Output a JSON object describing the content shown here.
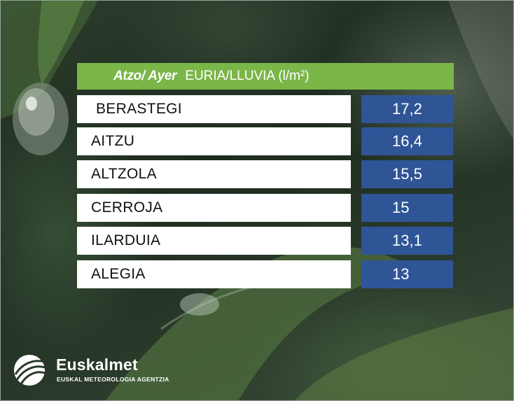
{
  "header": {
    "prefix": "Atzo/ Ayer",
    "title": "EURIA/LLUVIA (l/m²)"
  },
  "stations": [
    {
      "name": "BERASTEGI",
      "value": "17,2"
    },
    {
      "name": "AITZU",
      "value": "16,4"
    },
    {
      "name": "ALTZOLA",
      "value": "15,5"
    },
    {
      "name": "CERROJA",
      "value": "15"
    },
    {
      "name": "ILARDUIA",
      "value": "13,1"
    },
    {
      "name": "ALEGIA",
      "value": "13"
    }
  ],
  "logo": {
    "name": "Euskalmet",
    "subtitle": "EUSKAL METEOROLOGIA AGENTZIA",
    "icon": "euskalmet-logo-icon"
  },
  "colors": {
    "header": "#7ab648",
    "value_box": "#2f5597",
    "name_box": "#ffffff"
  }
}
